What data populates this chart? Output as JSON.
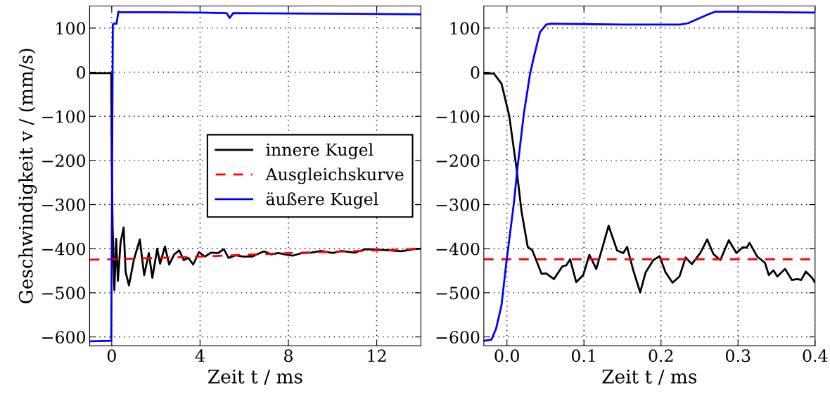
{
  "chart_data": [
    {
      "type": "line",
      "xlabel": "Zeit t / ms",
      "ylabel": "Geschwindigkeit v / (mm/s)",
      "xlim": [
        -1,
        14
      ],
      "xticks": [
        0,
        4,
        8,
        12
      ],
      "ylim": [
        -620,
        150
      ],
      "yticks": [
        {
          "value": -600,
          "label": "−600"
        },
        {
          "value": -500,
          "label": "−500"
        },
        {
          "value": -400,
          "label": "−400"
        },
        {
          "value": -300,
          "label": "−300"
        },
        {
          "value": -200,
          "label": "−200"
        },
        {
          "value": -100,
          "label": "−100"
        },
        0,
        100
      ],
      "grid": true,
      "legend": "center right",
      "line_style": "solid",
      "marker": "none",
      "series": [
        {
          "name": "innere Kugel",
          "color": "#000000",
          "x": [
            -1,
            -0.02,
            0,
            0.04,
            0.12,
            0.2,
            0.28,
            0.4,
            0.54,
            0.63,
            0.78,
            1.0,
            1.27,
            1.47,
            1.68,
            1.84,
            2.06,
            2.19,
            2.41,
            2.6,
            2.83,
            3.06,
            3.26,
            3.47,
            3.69,
            3.95,
            4.22,
            4.49,
            4.81,
            5.08,
            5.29,
            5.61,
            5.94,
            6.36,
            6.58,
            6.9,
            7.22,
            7.54,
            7.86,
            8.18,
            8.61,
            9.04,
            9.47,
            10.0,
            10.4,
            11.0,
            11.5,
            11.95,
            12.6,
            13.1,
            13.7,
            13.97
          ],
          "values": [
            -2,
            -2,
            -200,
            -349,
            -494,
            -378,
            -473,
            -386,
            -352,
            -453,
            -483,
            -426,
            -379,
            -460,
            -410,
            -466,
            -400,
            -434,
            -395,
            -436,
            -413,
            -404,
            -426,
            -421,
            -436,
            -408,
            -418,
            -409,
            -410,
            -401,
            -421,
            -415,
            -418,
            -418,
            -413,
            -406,
            -413,
            -410,
            -413,
            -416,
            -410,
            -409,
            -405,
            -410,
            -405,
            -409,
            -401,
            -402,
            -404,
            -406,
            -401,
            -400
          ]
        },
        {
          "name": "Ausgleichskurve",
          "color": "#ff0000",
          "line_style": "dashed",
          "x": [
            -1,
            0,
            4,
            8,
            12,
            14
          ],
          "values": [
            -425,
            -424,
            -418,
            -410,
            -404,
            -400
          ]
        },
        {
          "name": "äußere Kugel",
          "color": "#0000ff",
          "x": [
            -1,
            -0.02,
            0.01,
            0.05,
            0.1,
            0.22,
            0.3,
            0.4,
            2,
            4,
            5.2,
            5.34,
            5.5,
            8,
            12,
            14
          ],
          "values": [
            -610,
            -609,
            -297,
            108,
            110,
            110,
            137,
            136,
            136,
            135,
            134,
            123,
            134,
            133,
            132,
            131
          ]
        }
      ]
    },
    {
      "type": "line",
      "xlabel": "Zeit t / ms",
      "xlim": [
        -0.03,
        0.4
      ],
      "xticks": [
        {
          "value": 0,
          "label": "0.0"
        },
        0.1,
        0.2,
        0.3,
        0.4
      ],
      "ylim": [
        -620,
        150
      ],
      "yticks": [
        {
          "value": -600,
          "label": "−600"
        },
        {
          "value": -500,
          "label": "−500"
        },
        {
          "value": -400,
          "label": "−400"
        },
        {
          "value": -300,
          "label": "−300"
        },
        {
          "value": -200,
          "label": "−200"
        },
        {
          "value": -100,
          "label": "−100"
        },
        0,
        100
      ],
      "grid": true,
      "line_style": "solid",
      "marker": "none",
      "series": [
        {
          "color": "#000000",
          "x": [
            -0.03,
            -0.017,
            -0.007,
            0.003,
            0.012,
            0.019,
            0.027,
            0.033,
            0.045,
            0.051,
            0.061,
            0.072,
            0.077,
            0.082,
            0.09,
            0.099,
            0.107,
            0.116,
            0.132,
            0.143,
            0.151,
            0.156,
            0.164,
            0.173,
            0.18,
            0.19,
            0.198,
            0.206,
            0.215,
            0.224,
            0.232,
            0.24,
            0.251,
            0.26,
            0.268,
            0.277,
            0.288,
            0.298,
            0.306,
            0.311,
            0.315,
            0.325,
            0.335,
            0.34,
            0.346,
            0.351,
            0.361,
            0.37,
            0.377,
            0.382,
            0.388,
            0.396,
            0.4
          ],
          "values": [
            -3,
            -3,
            -26,
            -99,
            -212,
            -316,
            -396,
            -404,
            -457,
            -456,
            -469,
            -440,
            -438,
            -424,
            -476,
            -460,
            -414,
            -446,
            -348,
            -404,
            -410,
            -396,
            -449,
            -499,
            -454,
            -426,
            -417,
            -454,
            -477,
            -463,
            -420,
            -435,
            -410,
            -379,
            -412,
            -426,
            -381,
            -410,
            -397,
            -398,
            -387,
            -418,
            -432,
            -460,
            -449,
            -463,
            -446,
            -471,
            -469,
            -471,
            -452,
            -466,
            -477
          ]
        },
        {
          "color": "#ff0000",
          "line_style": "dashed",
          "x": [
            -0.03,
            0.4
          ],
          "values": [
            -424,
            -424
          ]
        },
        {
          "color": "#0000ff",
          "x": [
            -0.03,
            -0.02,
            -0.014,
            -0.007,
            -0.001,
            0.009,
            0.014,
            0.022,
            0.03,
            0.035,
            0.043,
            0.051,
            0.057,
            0.1,
            0.15,
            0.2,
            0.225,
            0.235,
            0.248,
            0.261,
            0.27,
            0.293,
            0.35,
            0.4
          ],
          "values": [
            -609,
            -606,
            -581,
            -528,
            -435,
            -297,
            -212,
            -94,
            -4,
            35,
            91,
            108,
            110,
            109,
            108,
            108,
            108,
            111,
            121,
            131,
            137,
            137,
            136,
            135
          ]
        }
      ]
    }
  ]
}
